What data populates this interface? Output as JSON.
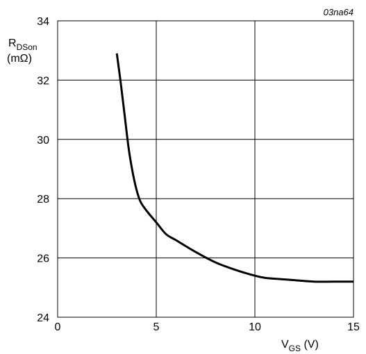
{
  "figure_id": "03na64",
  "chart_data": {
    "type": "line",
    "xlabel": {
      "main": "V",
      "sub": "GS",
      "unit": " (V)"
    },
    "ylabel": {
      "main": "R",
      "sub": "DSon",
      "unit": "(mΩ)"
    },
    "xlim": [
      0,
      15
    ],
    "ylim": [
      24,
      34
    ],
    "xticks": [
      0,
      5,
      10,
      15
    ],
    "yticks": [
      24,
      26,
      28,
      30,
      32,
      34
    ],
    "grid": true,
    "series": [
      {
        "color": "#000000",
        "x": [
          3.0,
          3.2,
          3.4,
          3.6,
          3.8,
          4.0,
          4.2,
          4.5,
          5.0,
          5.5,
          6.0,
          7.0,
          8.0,
          9.0,
          10.0,
          10.5,
          11.0,
          12.0,
          13.0,
          14.0,
          15.0
        ],
        "y": [
          32.9,
          31.9,
          30.8,
          29.7,
          28.9,
          28.3,
          27.9,
          27.6,
          27.2,
          26.8,
          26.6,
          26.2,
          25.85,
          25.6,
          25.4,
          25.33,
          25.3,
          25.25,
          25.2,
          25.2,
          25.2
        ]
      }
    ]
  }
}
